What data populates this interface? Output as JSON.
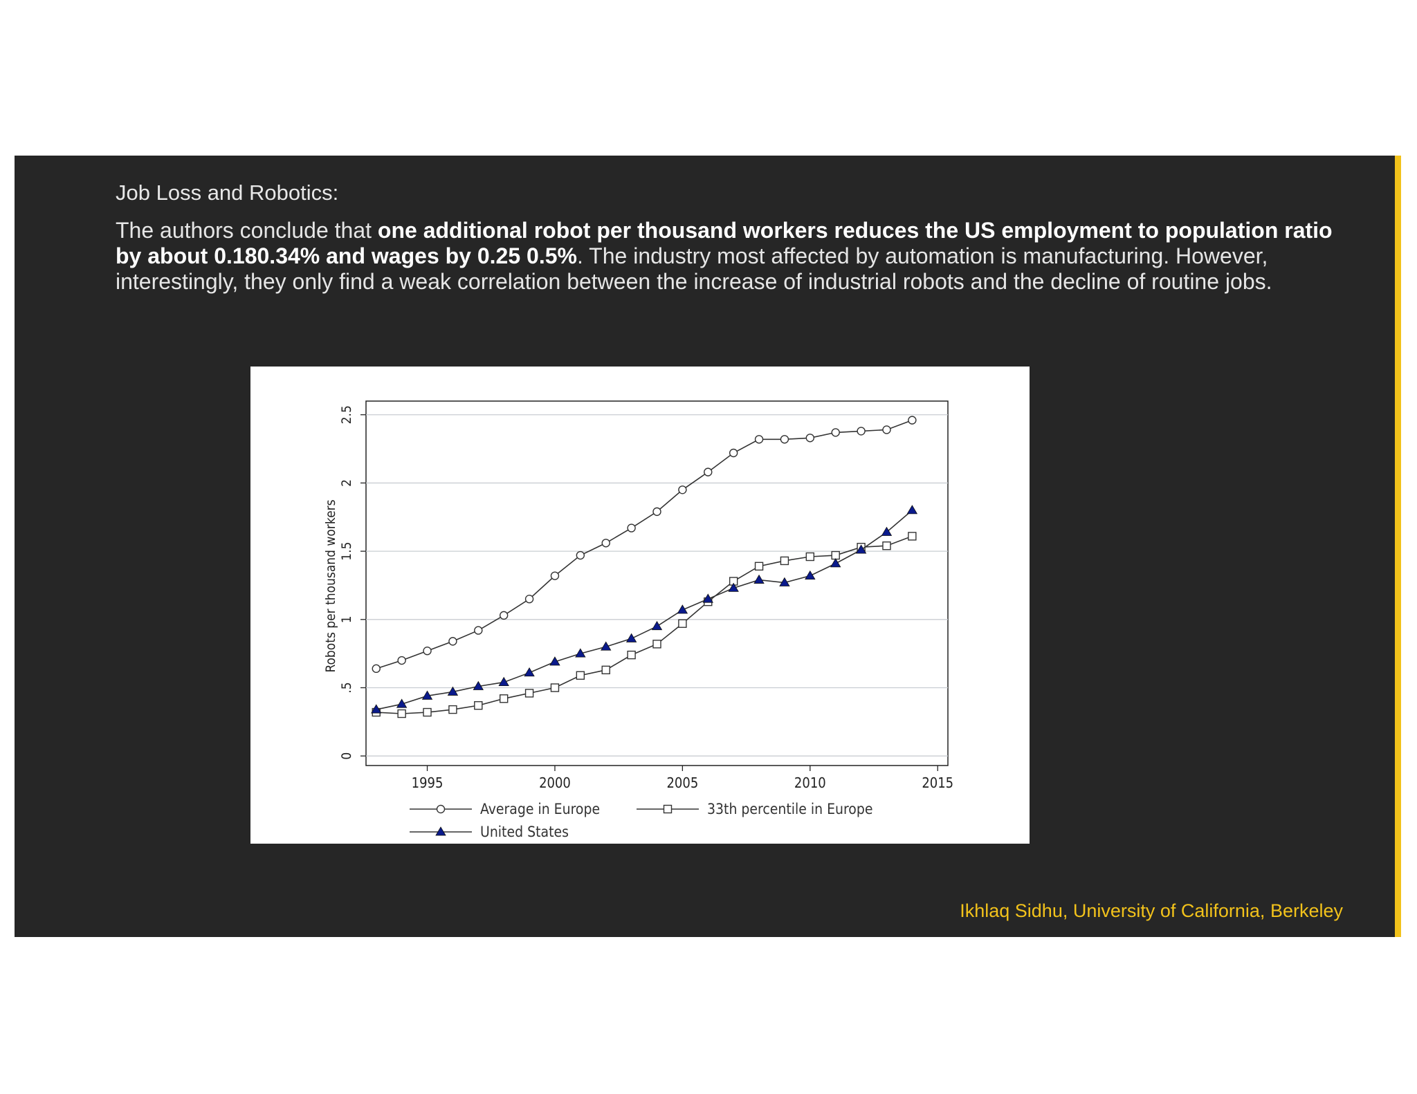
{
  "slide": {
    "heading": "Job Loss and Robotics:",
    "body": {
      "intro": "The authors conclude that ",
      "highlight": "one additional robot per thousand workers reduces the US employment to population ratio by about 0.180.34% and wages by 0.25 0.5%",
      "rest": ". The industry most affected by automation is manufacturing. However, interestingly, they only find a weak correlation between the increase of industrial robots and the decline of routine jobs."
    },
    "footer": "Ikhlaq Sidhu, University of California, Berkeley"
  },
  "colors": {
    "slide_background": "#262626",
    "accent": "#f2c21b",
    "us_series": "#0a1a8c"
  },
  "chart_data": {
    "type": "line",
    "ylabel": "Robots per thousand workers",
    "xlabel": "",
    "xlim": [
      1992.6,
      2015.4
    ],
    "ylim": [
      -0.07,
      2.6
    ],
    "x_ticks": [
      1995,
      2000,
      2005,
      2010,
      2015
    ],
    "x_tick_labels": [
      "1995",
      "2000",
      "2005",
      "2010",
      "2015"
    ],
    "y_ticks": [
      0,
      0.5,
      1,
      1.5,
      2,
      2.5
    ],
    "y_tick_labels": [
      "0",
      ".5",
      "1",
      "1.5",
      "2",
      "2.5"
    ],
    "grid": "horizontal",
    "legend_position": "bottom",
    "x": [
      1993,
      1994,
      1995,
      1996,
      1997,
      1998,
      1999,
      2000,
      2001,
      2002,
      2003,
      2004,
      2005,
      2006,
      2007,
      2008,
      2009,
      2010,
      2011,
      2012,
      2013,
      2014
    ],
    "series": [
      {
        "name": "Average in Europe",
        "marker": "circle",
        "values": [
          0.64,
          0.7,
          0.77,
          0.84,
          0.92,
          1.03,
          1.15,
          1.32,
          1.47,
          1.56,
          1.67,
          1.79,
          1.95,
          2.08,
          2.22,
          2.32,
          2.32,
          2.33,
          2.37,
          2.38,
          2.39,
          2.46
        ]
      },
      {
        "name": "33th percentile in Europe",
        "marker": "square",
        "values": [
          0.32,
          0.31,
          0.32,
          0.34,
          0.37,
          0.42,
          0.46,
          0.5,
          0.59,
          0.63,
          0.74,
          0.82,
          0.97,
          1.13,
          1.28,
          1.39,
          1.43,
          1.46,
          1.47,
          1.53,
          1.54,
          1.61
        ]
      },
      {
        "name": "United States",
        "marker": "triangle",
        "values": [
          0.34,
          0.38,
          0.44,
          0.47,
          0.51,
          0.54,
          0.61,
          0.69,
          0.75,
          0.8,
          0.86,
          0.95,
          1.07,
          1.15,
          1.23,
          1.29,
          1.27,
          1.32,
          1.41,
          1.51,
          1.64,
          1.8
        ]
      }
    ]
  }
}
